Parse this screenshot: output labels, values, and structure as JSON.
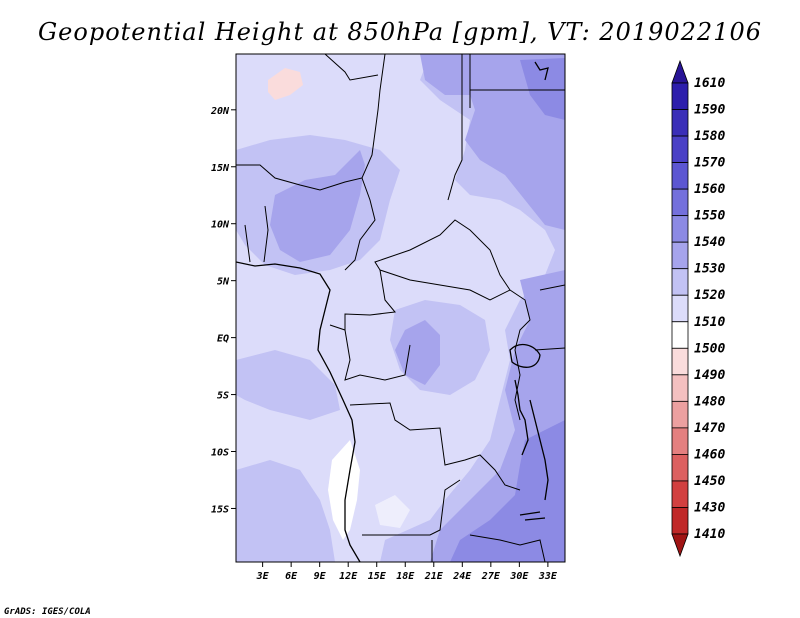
{
  "chart_data": {
    "type": "heatmap",
    "title": "Geopotential Height at 850hPa [gpm], VT: 2019022106",
    "variable": "Geopotential Height",
    "level": "850hPa",
    "units": "gpm",
    "valid_time": "2019022106",
    "x_ticks": [
      "3E",
      "6E",
      "9E",
      "12E",
      "15E",
      "18E",
      "21E",
      "24E",
      "27E",
      "30E",
      "33E"
    ],
    "x_tick_values": [
      3,
      6,
      9,
      12,
      15,
      18,
      21,
      24,
      27,
      30,
      33
    ],
    "y_ticks": [
      "20N",
      "15N",
      "10N",
      "5N",
      "EQ",
      "5S",
      "10S",
      "15S"
    ],
    "y_tick_values": [
      20,
      15,
      10,
      5,
      0,
      -5,
      -10,
      -15
    ],
    "xlim": [
      0.2,
      34.8
    ],
    "ylim": [
      -19.7,
      24.9
    ],
    "colorbar": {
      "levels": [
        "1610",
        "1590",
        "1580",
        "1570",
        "1560",
        "1550",
        "1540",
        "1530",
        "1520",
        "1510",
        "1500",
        "1490",
        "1480",
        "1470",
        "1460",
        "1450",
        "1430",
        "1410"
      ],
      "colors": [
        "#281496",
        "#2d1eac",
        "#3a2eb8",
        "#4a40c6",
        "#5c56d2",
        "#7470dc",
        "#8c8ae4",
        "#a6a4ec",
        "#c2c2f4",
        "#dcdcfa",
        "#ffffff",
        "#fadcdc",
        "#f4c0c0",
        "#eca0a0",
        "#e48080",
        "#dc6060",
        "#d24040",
        "#c02828",
        "#a01414"
      ]
    },
    "field_regions": [
      {
        "level": "1510",
        "lon": [
          3.3,
          6.2
        ],
        "lat": [
          21.0,
          24.0
        ]
      },
      {
        "level": "1520",
        "lon": [
          10.5,
          14.8
        ],
        "lat": [
          -16.0,
          -9.8
        ]
      },
      {
        "level": "1540",
        "lon": [
          12.0,
          15.5
        ],
        "lat": [
          6.0,
          13.0
        ]
      },
      {
        "level": "1550",
        "lon": [
          28.0,
          34.8
        ],
        "lat": [
          -19.7,
          -9.0
        ]
      }
    ]
  },
  "credit": "GrADS: IGES/COLA"
}
